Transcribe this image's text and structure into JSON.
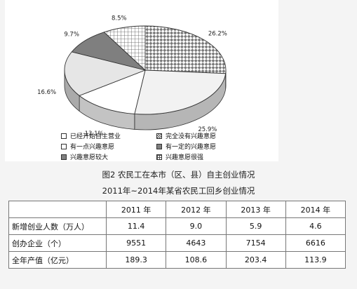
{
  "chart_data": {
    "type": "pie",
    "title": "图2 农民工在本市（区、县）自主创业情况",
    "slices": [
      {
        "label": "完全没有兴趣意愿",
        "value": 26.2,
        "display": "26.2%",
        "pattern": "checker",
        "color": "#ffffff"
      },
      {
        "label": "已经开始自主营业",
        "value": 25.9,
        "display": "25.9%",
        "pattern": "plain",
        "color": "#f2f2f2"
      },
      {
        "label": "有一点兴趣意愿",
        "value": 13.1,
        "display": "13.1%",
        "pattern": "plain",
        "color": "#ffffff"
      },
      {
        "label": "有一定的兴趣意愿",
        "value": 16.6,
        "display": "16.6%",
        "pattern": "plain",
        "color": "#e6e6e6"
      },
      {
        "label": "兴趣意愿较大",
        "value": 9.7,
        "display": "9.7%",
        "pattern": "plain",
        "color": "#7f7f7f"
      },
      {
        "label": "兴趣意愿很强",
        "value": 8.5,
        "display": "8.5%",
        "pattern": "grid",
        "color": "#ffffff"
      }
    ],
    "legend": [
      {
        "label": "已经开始自主营业",
        "swatch": "#ffffff"
      },
      {
        "label": "完全没有兴趣意愿",
        "swatch": "checker"
      },
      {
        "label": "有一点兴趣意愿",
        "swatch": "#ffffff"
      },
      {
        "label": "有一定的兴趣意愿",
        "swatch": "#7f7f7f"
      },
      {
        "label": "兴趣意愿较大",
        "swatch": "#7f7f7f"
      },
      {
        "label": "兴趣意愿很强",
        "swatch": "grid"
      }
    ],
    "legend_placement": "bottom"
  },
  "table": {
    "title": "2011年~2014年某省农民工回乡创业情况",
    "headers": [
      "",
      "2011 年",
      "2012 年",
      "2013 年",
      "2014 年"
    ],
    "rows": [
      {
        "label": "新增创业人数（万人）",
        "values": [
          "11.4",
          "9.0",
          "5.9",
          "4.6"
        ]
      },
      {
        "label": "创办企业（个）",
        "values": [
          "9551",
          "4643",
          "7154",
          "6616"
        ]
      },
      {
        "label": "全年产值（亿元）",
        "values": [
          "189.3",
          "108.6",
          "203.4",
          "113.9"
        ]
      }
    ]
  }
}
